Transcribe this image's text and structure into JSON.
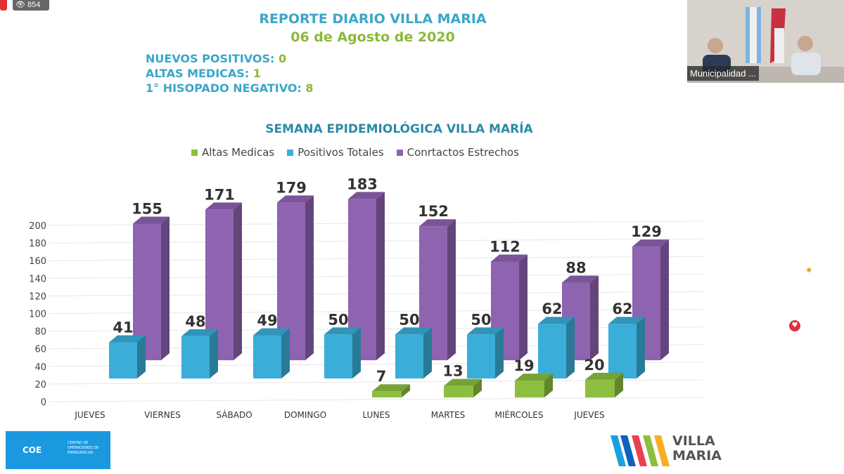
{
  "stream": {
    "views": "854",
    "participant_name": "Municipalidad ..."
  },
  "report": {
    "title": "REPORTE DIARIO VILLA MARIA",
    "date": "06 de Agosto de 2020",
    "stats": [
      {
        "label": "NUEVOS POSITIVOS:",
        "value": "0"
      },
      {
        "label": "ALTAS MEDICAS:",
        "value": "1"
      },
      {
        "label": "1° HISOPADO NEGATIVO:",
        "value": "8"
      }
    ]
  },
  "logos": {
    "coe": "COE",
    "coe_sub": "CENTRO DE OPERACIONES DE EMERGENCIAS",
    "villa_maria": "VILLA MARIA"
  },
  "colors": {
    "altas": "#8cbf3f",
    "positivos": "#3aaed8",
    "contactos": "#8e63b0",
    "title_blue": "#3aa6c9",
    "title_green": "#8cb83a"
  },
  "chart_data": {
    "type": "bar",
    "style": "3d-clustered",
    "title": "SEMANA EPIDEMIOLÓGICA VILLA MARÍA",
    "legend_position": "top",
    "categories": [
      "JUEVES",
      "VIERNES",
      "SÁBADO",
      "DOMINGO",
      "LUNES",
      "MARTES",
      "MIÉRCOLES",
      "JUEVES"
    ],
    "series": [
      {
        "name": "Altas Medicas",
        "color": "#8cbf3f",
        "values": [
          null,
          null,
          null,
          null,
          7,
          13,
          19,
          20
        ]
      },
      {
        "name": "Positivos Totales",
        "color": "#3aaed8",
        "values": [
          41,
          48,
          49,
          50,
          50,
          50,
          62,
          62
        ]
      },
      {
        "name": "Conrtactos Estrechos",
        "color": "#8e63b0",
        "values": [
          155,
          171,
          179,
          183,
          152,
          112,
          88,
          129
        ]
      }
    ],
    "ylim": [
      0,
      200
    ],
    "yticks": [
      0,
      20,
      40,
      60,
      80,
      100,
      120,
      140,
      160,
      180,
      200
    ],
    "grid": true
  }
}
